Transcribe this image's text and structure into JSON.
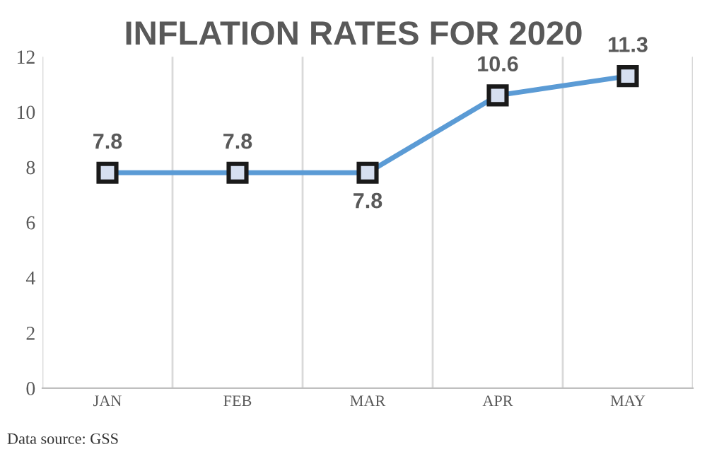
{
  "chart_data": {
    "type": "line",
    "title": "INFLATION RATES FOR 2020",
    "categories": [
      "JAN",
      "FEB",
      "MAR",
      "APR",
      "MAY"
    ],
    "series": [
      {
        "color": "#5b9bd5",
        "values": [
          7.8,
          7.8,
          7.8,
          10.6,
          11.3
        ]
      }
    ],
    "ylim": [
      0,
      12
    ],
    "yticks": [
      0,
      2,
      4,
      6,
      8,
      10,
      12
    ],
    "grid": "x",
    "marker": "square",
    "line_style": "solid",
    "data_labels": true,
    "annotations": [
      "Data source: GSS"
    ]
  }
}
